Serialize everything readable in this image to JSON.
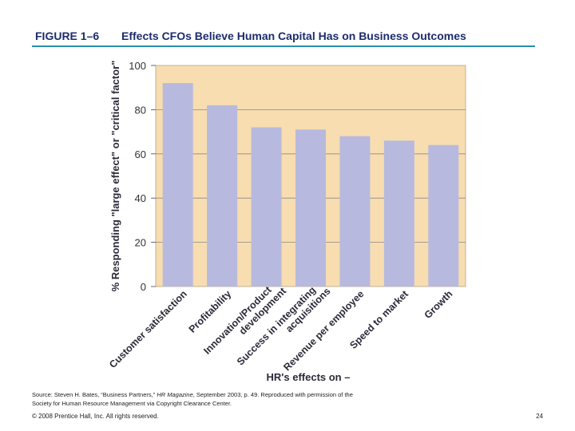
{
  "header": {
    "figure_label": "FIGURE 1–6",
    "title": "Effects CFOs Believe Human Capital Has on Business Outcomes"
  },
  "chart_data": {
    "type": "bar",
    "title": "Effects CFOs Believe Human Capital Has on Business Outcomes",
    "categories": [
      "Customer satisfaction",
      "Profitability",
      "Innovation/Product development",
      "Success in integrating acquisitions",
      "Revenue per employee",
      "Speed to market",
      "Growth"
    ],
    "category_lines": [
      [
        "Customer satisfaction"
      ],
      [
        "Profitability"
      ],
      [
        "Innovation/Product",
        "development"
      ],
      [
        "Success in integrating",
        "acquisitions"
      ],
      [
        "Revenue per employee"
      ],
      [
        "Speed to market"
      ],
      [
        "Growth"
      ]
    ],
    "values": [
      92,
      82,
      72,
      71,
      68,
      66,
      64
    ],
    "xlabel": "HR's effects on –",
    "ylabel": "% Responding \"large effect\" or \"critical factor\"",
    "ylim": [
      0,
      100
    ],
    "yticks": [
      0,
      20,
      40,
      60,
      80,
      100
    ],
    "grid": true,
    "colors": {
      "bar": "#b8b9de",
      "plot_background": "#f7ddb0",
      "gridline": "#8a8a8a"
    }
  },
  "footer": {
    "source_prefix": "Source: Steven H. Bates, “Business Partners,” ",
    "source_magazine": "HR Magazine",
    "source_suffix": ", September 2003, p. 49. Reproduced with permission of the Society for Human Resource Management via Copyright Clearance Center.",
    "copyright": "© 2008 Prentice Hall, Inc. All rights reserved.",
    "page_number": "24"
  }
}
